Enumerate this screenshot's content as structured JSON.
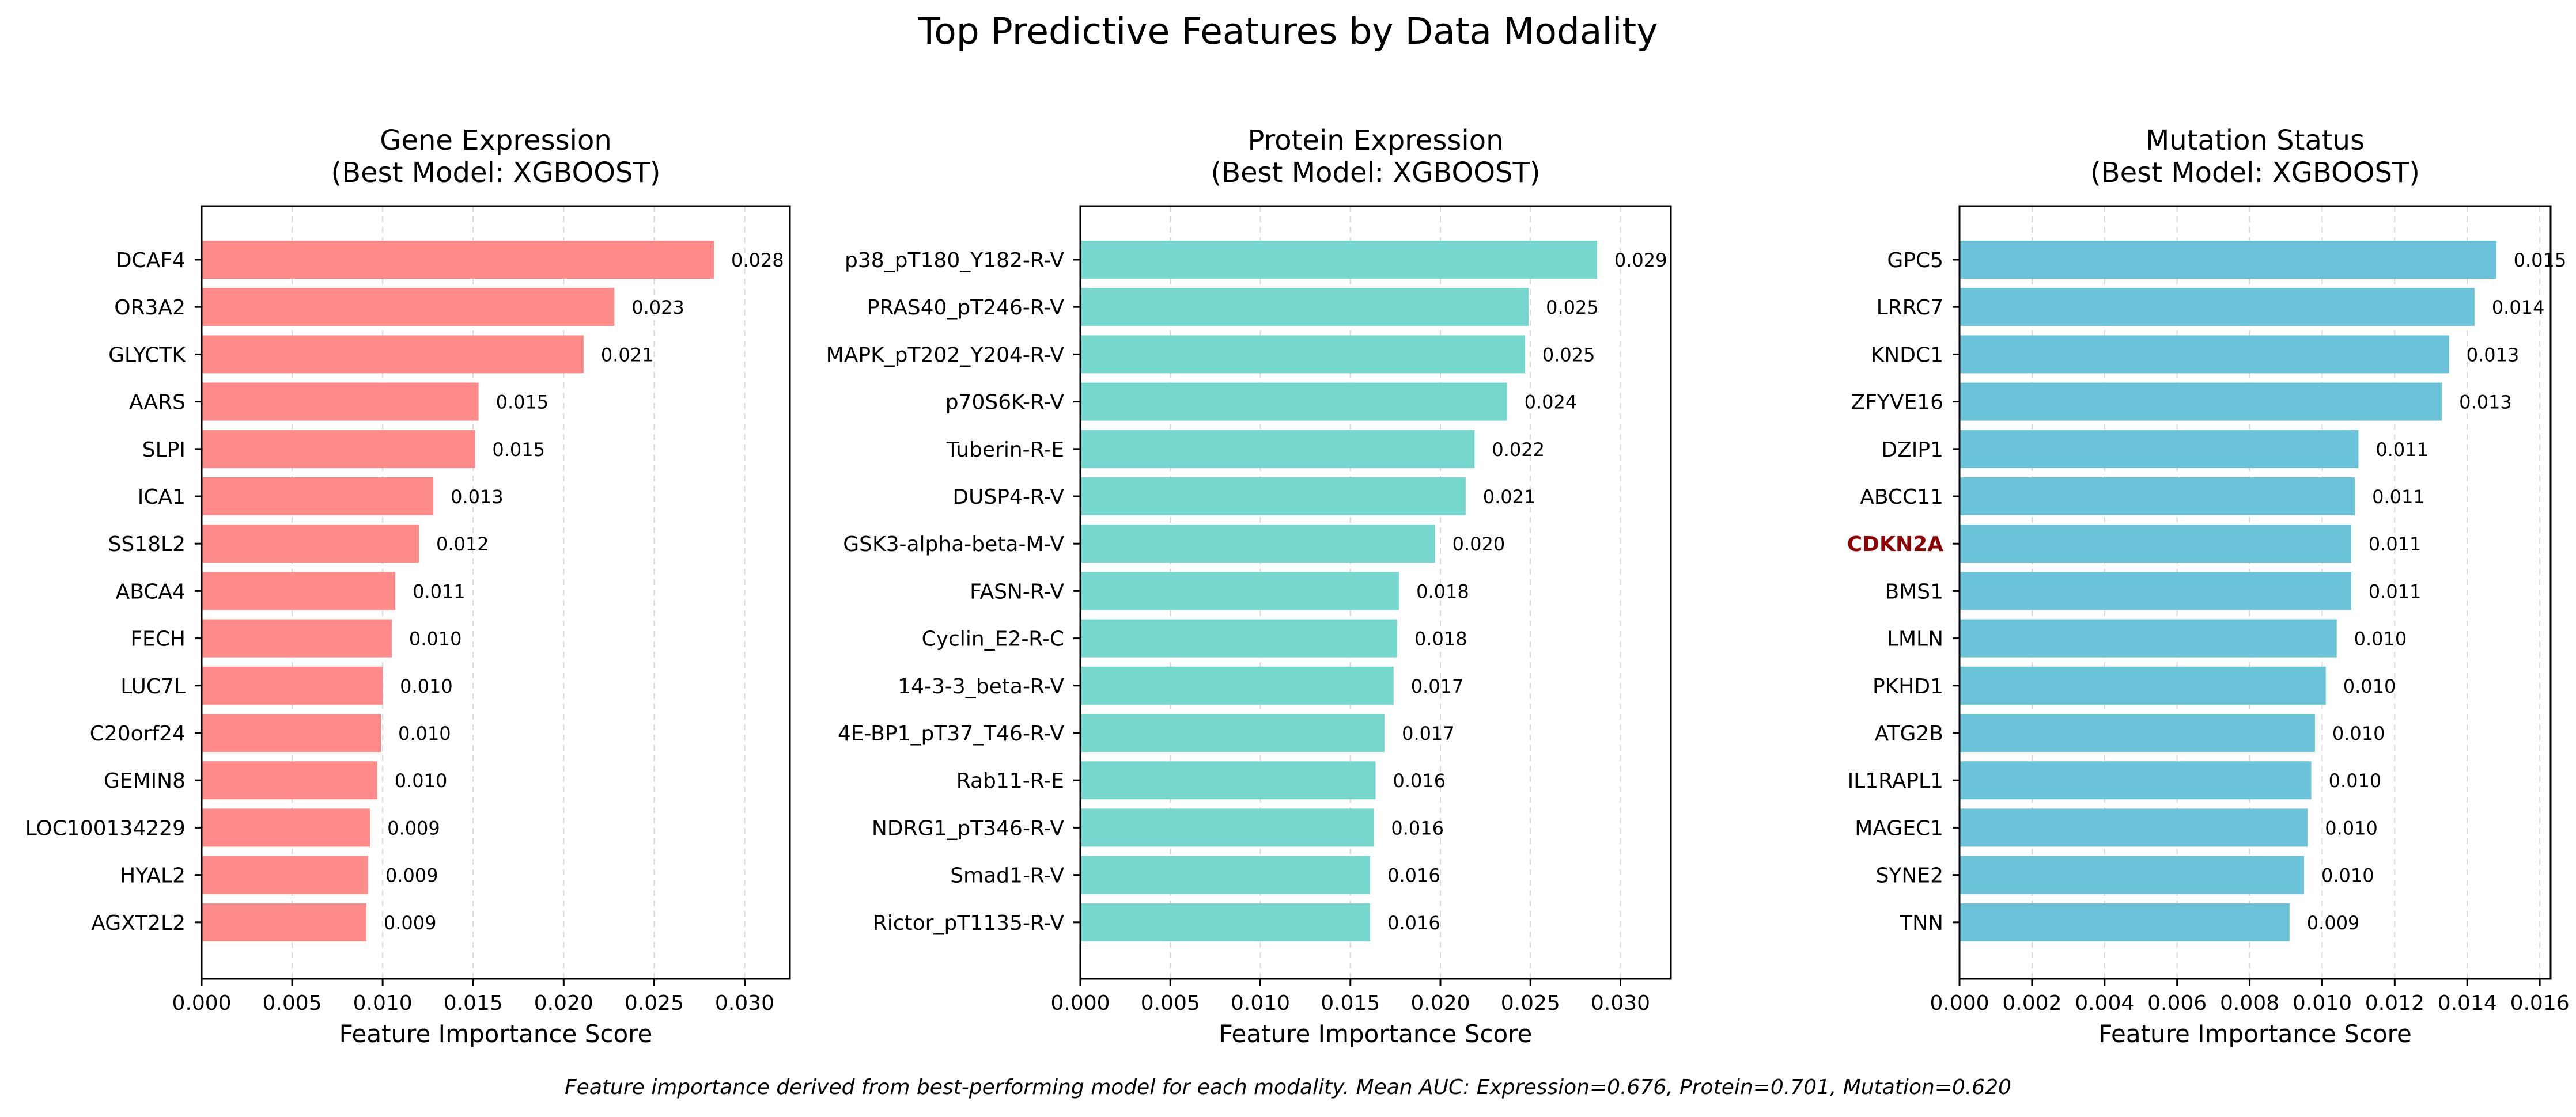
{
  "title": "Top Predictive Features by Data Modality",
  "caption": "Feature importance derived from best-performing model for each modality. Mean AUC: Expression=0.676, Protein=0.701, Mutation=0.620",
  "colors": {
    "gene": "#FF8A8A",
    "protein": "#76D7CE",
    "mutation": "#6BC3DA",
    "highlight_label": "#8B0000"
  },
  "chart_data": [
    {
      "type": "bar",
      "orientation": "horizontal",
      "title": "Gene Expression\n(Best Model: XGBOOST)",
      "xlabel": "Feature Importance Score",
      "xlim": [
        0,
        0.0325
      ],
      "xticks": [
        "0.000",
        "0.005",
        "0.010",
        "0.015",
        "0.020",
        "0.025",
        "0.030"
      ],
      "xtick_values": [
        0,
        0.005,
        0.01,
        0.015,
        0.02,
        0.025,
        0.03
      ],
      "grid": "x-dashed",
      "color_key": "gene",
      "categories": [
        "DCAF4",
        "OR3A2",
        "GLYCTK",
        "AARS",
        "SLPI",
        "ICA1",
        "SS18L2",
        "ABCA4",
        "FECH",
        "LUC7L",
        "C20orf24",
        "GEMIN8",
        "LOC100134229",
        "HYAL2",
        "AGXT2L2"
      ],
      "values": [
        0.0283,
        0.0228,
        0.0211,
        0.0153,
        0.0151,
        0.0128,
        0.012,
        0.0107,
        0.0105,
        0.01,
        0.0099,
        0.0097,
        0.0093,
        0.0092,
        0.0091
      ],
      "data_labels": [
        "0.028",
        "0.023",
        "0.021",
        "0.015",
        "0.015",
        "0.013",
        "0.012",
        "0.011",
        "0.010",
        "0.010",
        "0.010",
        "0.010",
        "0.009",
        "0.009",
        "0.009"
      ],
      "highlight": []
    },
    {
      "type": "bar",
      "orientation": "horizontal",
      "title": "Protein Expression\n(Best Model: XGBOOST)",
      "xlabel": "Feature Importance Score",
      "xlim": [
        0,
        0.0328
      ],
      "xticks": [
        "0.000",
        "0.005",
        "0.010",
        "0.015",
        "0.020",
        "0.025",
        "0.030"
      ],
      "xtick_values": [
        0,
        0.005,
        0.01,
        0.015,
        0.02,
        0.025,
        0.03
      ],
      "grid": "x-dashed",
      "color_key": "protein",
      "categories": [
        "p38_pT180_Y182-R-V",
        "PRAS40_pT246-R-V",
        "MAPK_pT202_Y204-R-V",
        "p70S6K-R-V",
        "Tuberin-R-E",
        "DUSP4-R-V",
        "GSK3-alpha-beta-M-V",
        "FASN-R-V",
        "Cyclin_E2-R-C",
        "14-3-3_beta-R-V",
        "4E-BP1_pT37_T46-R-V",
        "Rab11-R-E",
        "NDRG1_pT346-R-V",
        "Smad1-R-V",
        "Rictor_pT1135-R-V"
      ],
      "values": [
        0.0287,
        0.0249,
        0.0247,
        0.0237,
        0.0219,
        0.0214,
        0.0197,
        0.0177,
        0.0176,
        0.0174,
        0.0169,
        0.0164,
        0.0163,
        0.0161,
        0.0161
      ],
      "data_labels": [
        "0.029",
        "0.025",
        "0.025",
        "0.024",
        "0.022",
        "0.021",
        "0.020",
        "0.018",
        "0.018",
        "0.017",
        "0.017",
        "0.016",
        "0.016",
        "0.016",
        "0.016"
      ],
      "highlight": []
    },
    {
      "type": "bar",
      "orientation": "horizontal",
      "title": "Mutation Status\n(Best Model: XGBOOST)",
      "xlabel": "Feature Importance Score",
      "xlim": [
        0,
        0.0163
      ],
      "xticks": [
        "0.000",
        "0.002",
        "0.004",
        "0.006",
        "0.008",
        "0.010",
        "0.012",
        "0.014",
        "0.016"
      ],
      "xtick_values": [
        0,
        0.002,
        0.004,
        0.006,
        0.008,
        0.01,
        0.012,
        0.014,
        0.016
      ],
      "grid": "x-dashed",
      "color_key": "mutation",
      "categories": [
        "GPC5",
        "LRRC7",
        "KNDC1",
        "ZFYVE16",
        "DZIP1",
        "ABCC11",
        "CDKN2A",
        "BMS1",
        "LMLN",
        "PKHD1",
        "ATG2B",
        "IL1RAPL1",
        "MAGEC1",
        "SYNE2",
        "TNN"
      ],
      "values": [
        0.0148,
        0.0142,
        0.0135,
        0.0133,
        0.011,
        0.0109,
        0.0108,
        0.0108,
        0.0104,
        0.0101,
        0.0098,
        0.0097,
        0.0096,
        0.0095,
        0.0091
      ],
      "data_labels": [
        "0.015",
        "0.014",
        "0.013",
        "0.013",
        "0.011",
        "0.011",
        "0.011",
        "0.011",
        "0.010",
        "0.010",
        "0.010",
        "0.010",
        "0.010",
        "0.010",
        "0.009"
      ],
      "highlight": [
        "CDKN2A"
      ]
    }
  ]
}
